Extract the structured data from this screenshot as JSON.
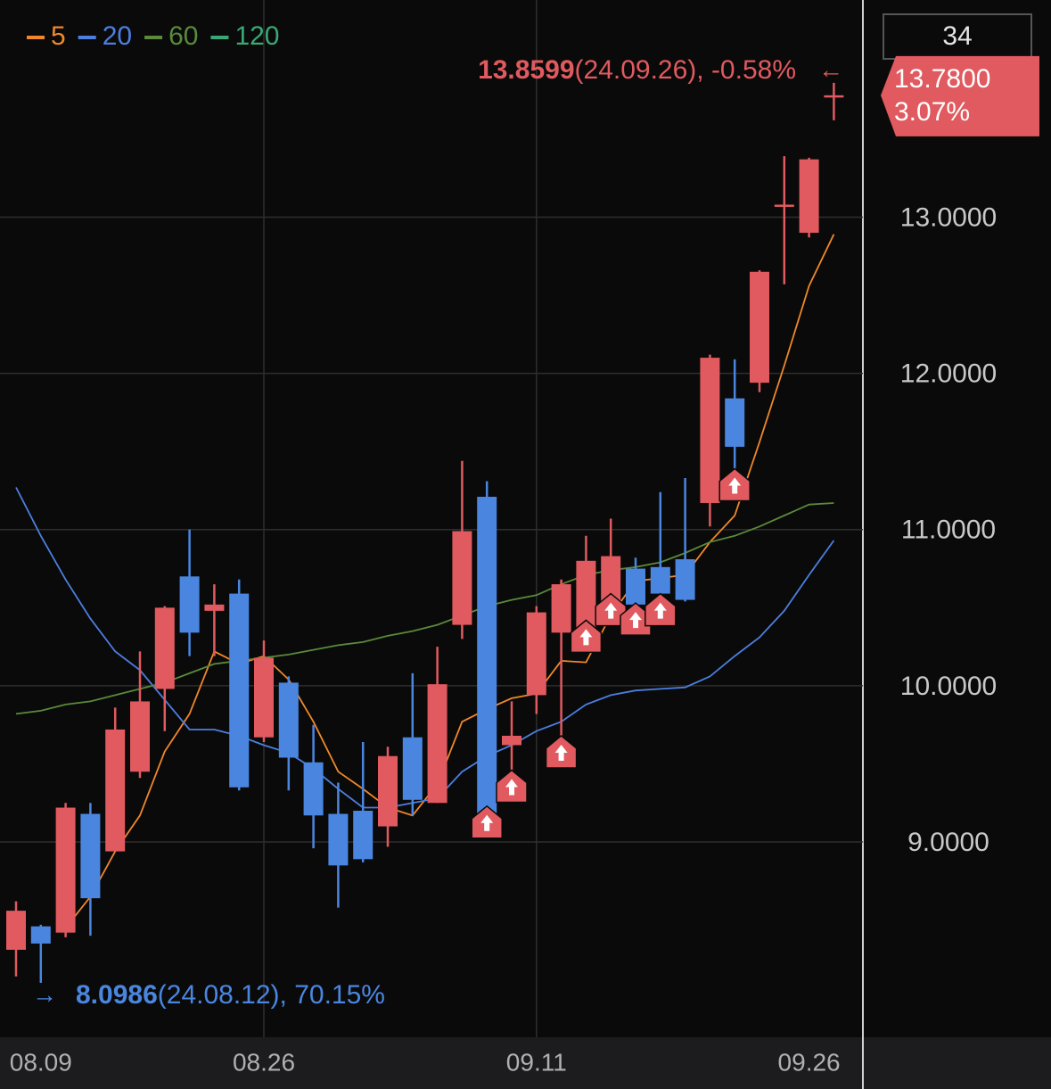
{
  "chart_data": {
    "type": "candlestick",
    "period": "34",
    "categories": [
      null,
      "08.09",
      null,
      null,
      null,
      null,
      null,
      null,
      null,
      null,
      "08.26",
      null,
      null,
      null,
      null,
      null,
      null,
      null,
      null,
      null,
      null,
      "09.11",
      null,
      null,
      null,
      null,
      null,
      null,
      null,
      null,
      null,
      null,
      "09.26",
      null
    ],
    "open": [
      8.31,
      8.46,
      8.42,
      9.18,
      8.94,
      9.45,
      9.98,
      10.7,
      10.48,
      10.59,
      9.67,
      10.02,
      9.51,
      9.18,
      9.2,
      9.1,
      9.67,
      9.25,
      10.39,
      11.21,
      9.62,
      9.94,
      10.34,
      10.35,
      10.52,
      10.75,
      10.76,
      10.81,
      11.17,
      11.84,
      11.94,
      13.07,
      12.9,
      13.78
    ],
    "high": [
      8.62,
      8.47,
      9.25,
      9.25,
      9.86,
      10.22,
      10.51,
      11.0,
      10.65,
      10.68,
      10.29,
      10.06,
      9.75,
      9.38,
      9.64,
      9.61,
      10.08,
      10.25,
      11.44,
      11.31,
      9.9,
      10.51,
      10.68,
      10.96,
      11.07,
      10.82,
      11.24,
      11.33,
      12.12,
      12.09,
      12.66,
      13.39,
      13.38,
      13.8599
    ],
    "low": [
      8.14,
      8.0986,
      8.39,
      8.4,
      8.94,
      9.41,
      9.71,
      10.19,
      10.19,
      9.33,
      9.64,
      9.33,
      8.96,
      8.58,
      8.87,
      8.97,
      9.17,
      9.25,
      10.3,
      9.15,
      9.38,
      9.82,
      9.6,
      10.34,
      10.51,
      10.45,
      10.51,
      10.54,
      11.02,
      11.31,
      11.88,
      12.57,
      12.87,
      13.62
    ],
    "close": [
      8.56,
      8.35,
      9.22,
      8.64,
      9.72,
      9.9,
      10.5,
      10.34,
      10.52,
      9.35,
      10.18,
      9.54,
      9.17,
      8.85,
      8.89,
      9.55,
      9.27,
      10.01,
      10.99,
      9.15,
      9.68,
      10.47,
      10.65,
      10.8,
      10.83,
      10.52,
      10.59,
      10.55,
      12.1,
      11.53,
      12.65,
      13.08,
      13.37,
      13.78
    ],
    "up_color": "#e05a5f",
    "down_color": "#4a86e0",
    "series": [
      {
        "name": "5",
        "color": "#f0882a",
        "values": [
          null,
          null,
          8.45,
          8.65,
          8.94,
          9.17,
          9.58,
          9.82,
          10.22,
          10.14,
          10.19,
          10.04,
          9.77,
          9.45,
          9.34,
          9.22,
          9.17,
          9.37,
          9.77,
          9.85,
          9.92,
          9.95,
          10.16,
          10.15,
          10.45,
          10.67,
          10.69,
          10.71,
          10.92,
          11.09,
          11.56,
          12.05,
          12.56,
          12.89
        ]
      },
      {
        "name": "20",
        "color": "#4c7fe0",
        "values": [
          11.27,
          10.96,
          10.68,
          10.43,
          10.22,
          10.1,
          9.91,
          9.72,
          9.72,
          9.68,
          9.62,
          9.57,
          9.47,
          9.34,
          9.22,
          9.22,
          9.25,
          9.28,
          9.45,
          9.55,
          9.62,
          9.71,
          9.77,
          9.88,
          9.94,
          9.97,
          9.98,
          9.99,
          10.06,
          10.19,
          10.31,
          10.48,
          10.71,
          10.93
        ]
      },
      {
        "name": "60",
        "color": "#5a8a3a",
        "values": [
          9.82,
          9.84,
          9.88,
          9.9,
          9.94,
          9.98,
          10.02,
          10.08,
          10.14,
          10.16,
          10.18,
          10.2,
          10.23,
          10.26,
          10.28,
          10.32,
          10.35,
          10.39,
          10.45,
          10.51,
          10.55,
          10.58,
          10.65,
          10.71,
          10.74,
          10.76,
          10.79,
          10.85,
          10.92,
          10.96,
          11.02,
          11.09,
          11.16,
          11.17
        ]
      },
      {
        "name": "120",
        "color": "#3aa876",
        "values": [
          null,
          null,
          null,
          null,
          null,
          null,
          null,
          null,
          null,
          null,
          null,
          null,
          null,
          null,
          null,
          null,
          null,
          null,
          null,
          null,
          null,
          null,
          null,
          null,
          null,
          null,
          null,
          null,
          null,
          null,
          null,
          null,
          null,
          null
        ]
      }
    ],
    "signals": [
      19,
      20,
      22,
      23,
      24,
      25,
      26,
      29
    ],
    "high_note": "(24.09.26), -0.58%",
    "low_note": "(24.08.12), 70.15%",
    "last_label": "13.7800",
    "last_change": "3.07%",
    "ylim": [
      7.75,
      14.39
    ],
    "yticks": [
      {
        "value": 9,
        "label": "9.0000"
      },
      {
        "value": 10,
        "label": "10.0000"
      },
      {
        "value": 11,
        "label": "11.0000"
      },
      {
        "value": 12,
        "label": "12.0000"
      },
      {
        "value": 13,
        "label": "13.0000"
      }
    ],
    "grid": true
  }
}
